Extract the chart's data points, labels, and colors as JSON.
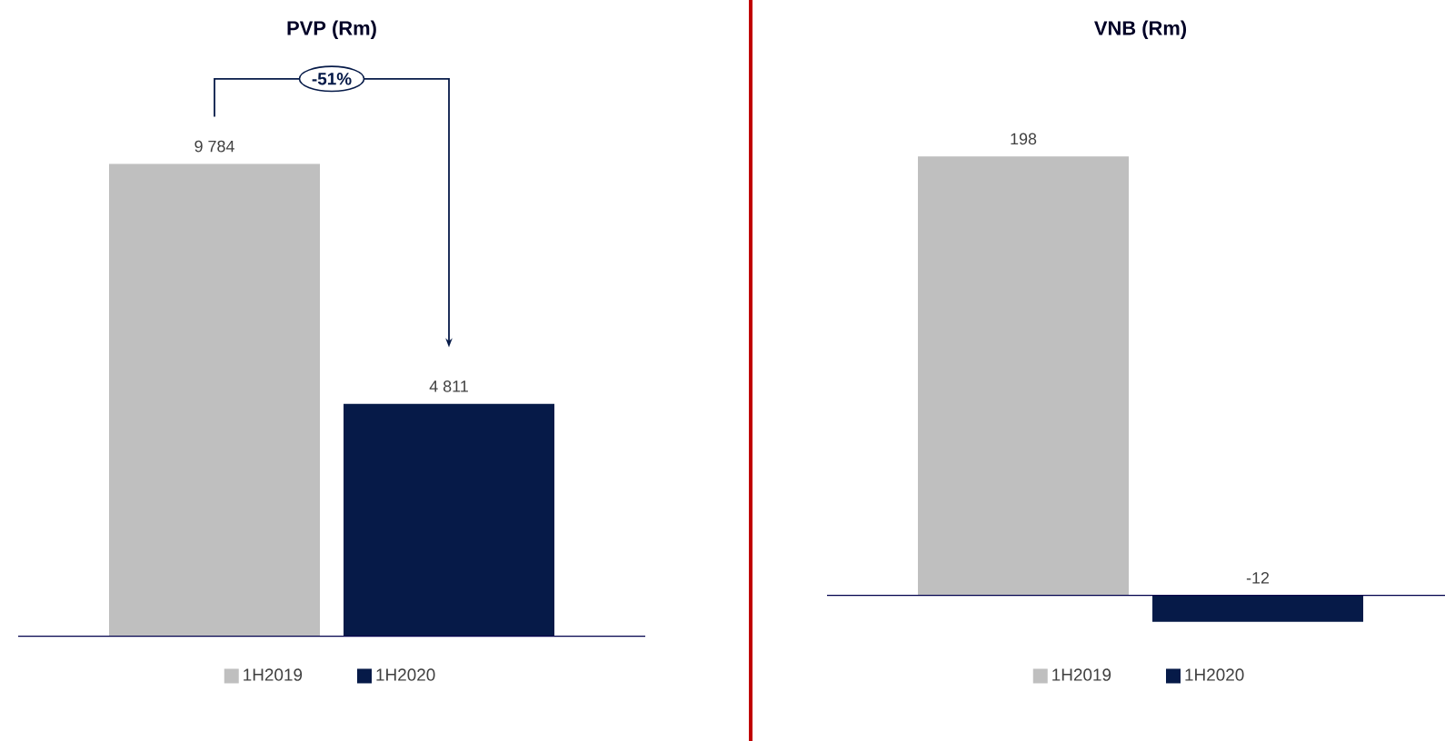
{
  "chart_data": [
    {
      "type": "bar",
      "title": "PVP (Rm)",
      "categories": [
        null
      ],
      "legend": "bottom",
      "annotations": [
        "-51%"
      ],
      "series": [
        {
          "name": "1H2019",
          "color": "#bfbfbf",
          "values": [
            9784
          ],
          "value_labels": [
            "9 784"
          ]
        },
        {
          "name": "1H2020",
          "color": "#061a48",
          "values": [
            4811
          ],
          "value_labels": [
            "4 811"
          ]
        }
      ]
    },
    {
      "type": "bar",
      "title": "VNB (Rm)",
      "categories": [
        null
      ],
      "legend": "bottom",
      "series": [
        {
          "name": "1H2019",
          "color": "#bfbfbf",
          "values": [
            198
          ],
          "value_labels": [
            "198"
          ]
        },
        {
          "name": "1H2020",
          "color": "#061a48",
          "values": [
            -12
          ],
          "value_labels": [
            "-12"
          ]
        }
      ]
    }
  ]
}
